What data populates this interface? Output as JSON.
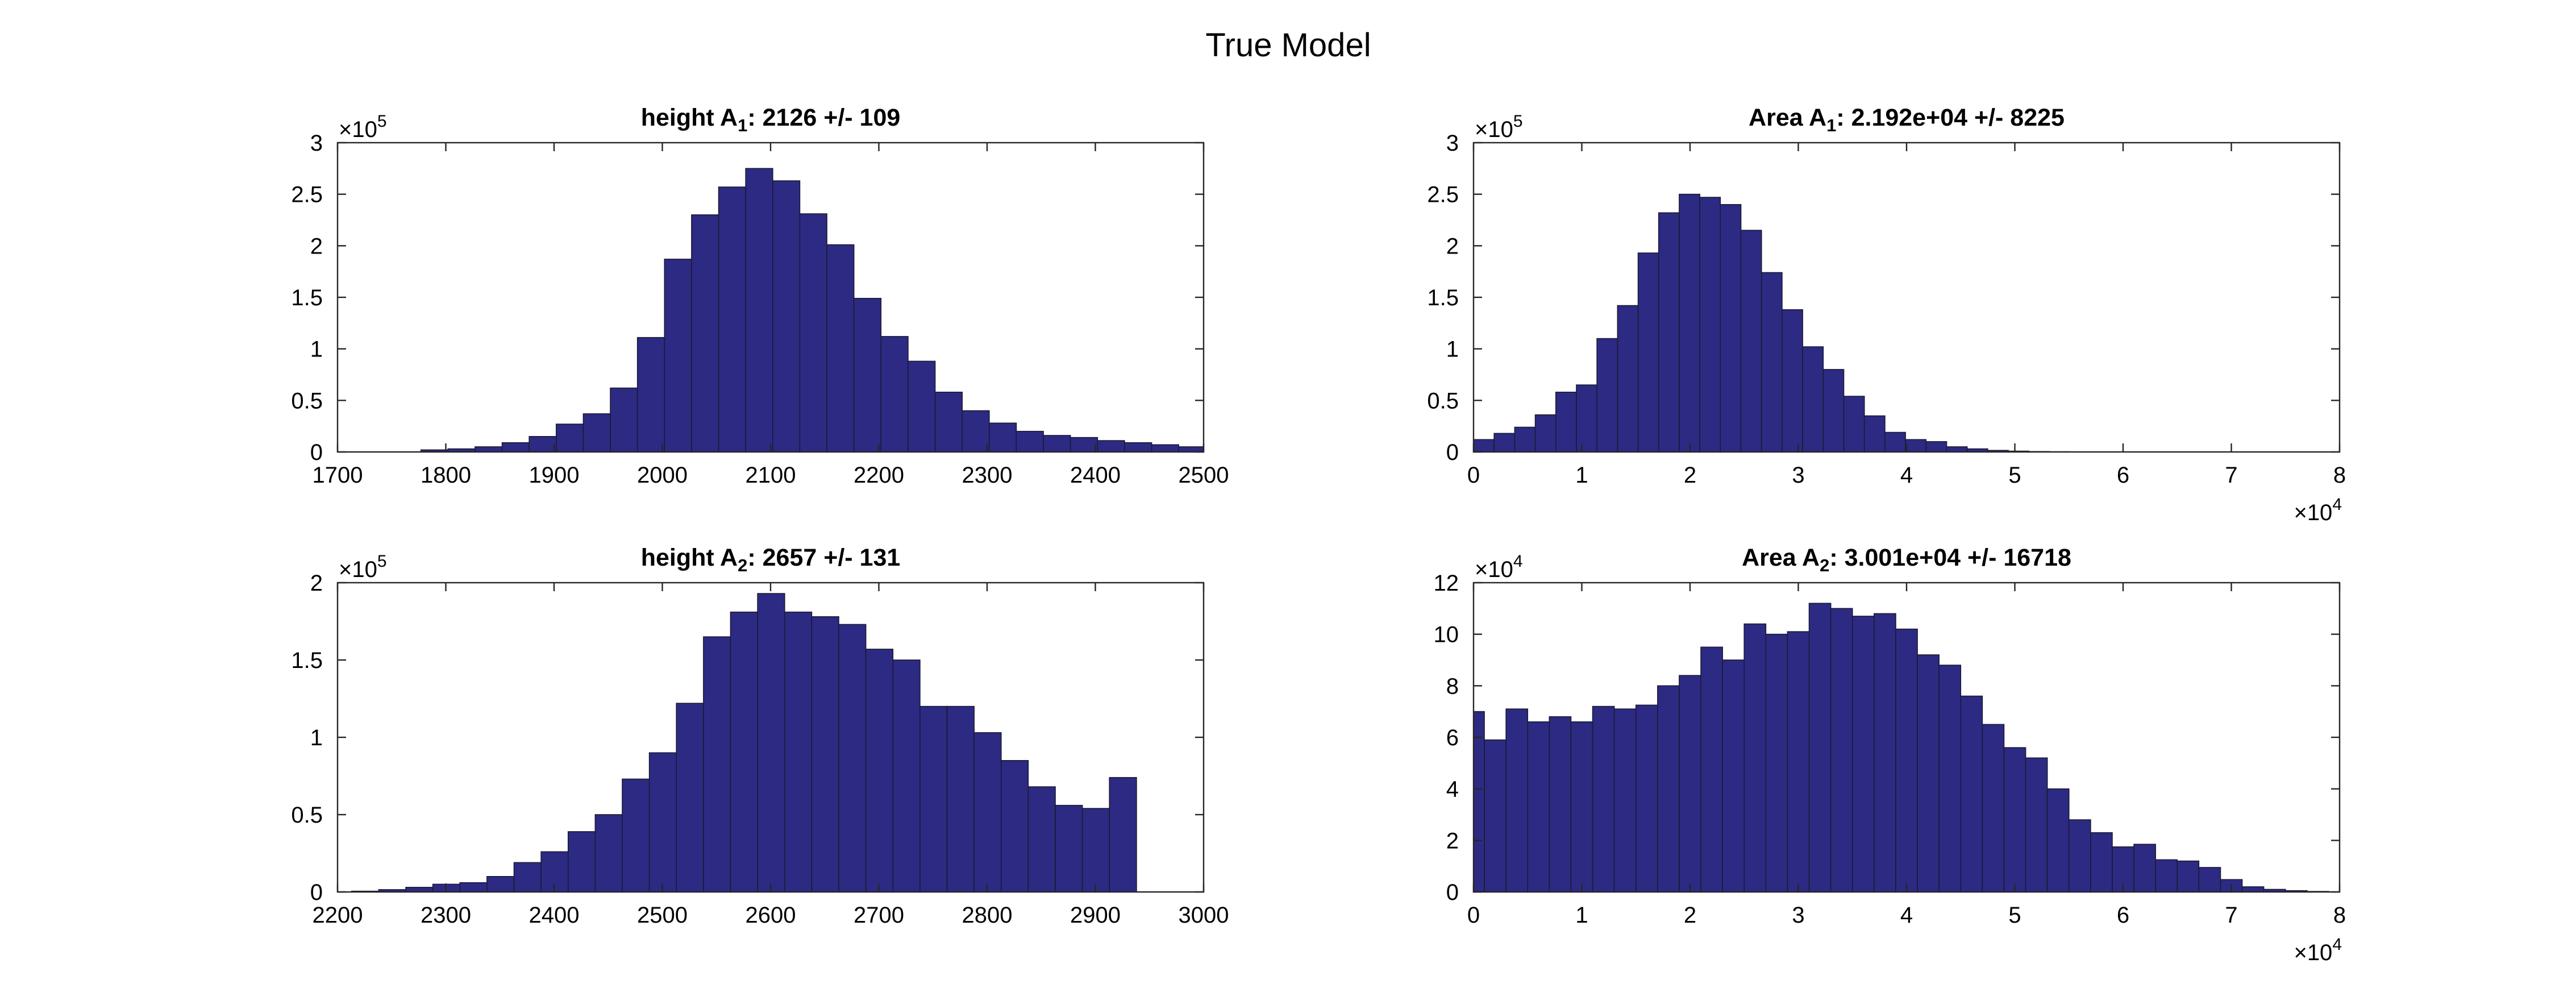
{
  "figure": {
    "title": "True Model",
    "bar_color": "#2d2a84",
    "bar_edge_color": "#1a1a33"
  },
  "chart_data": [
    {
      "type": "bar",
      "panel": "top-left",
      "title": {
        "prefix": "height A",
        "sub": "1",
        "suffix": ": 2126 +/- 109"
      },
      "xlim": [
        1700,
        2500
      ],
      "xticks": [
        1700,
        1800,
        1900,
        2000,
        2100,
        2200,
        2300,
        2400,
        2500
      ],
      "xtick_labels": [
        "1700",
        "1800",
        "1900",
        "2000",
        "2100",
        "2200",
        "2300",
        "2400",
        "2500"
      ],
      "ylim": [
        0,
        300000
      ],
      "yticks": [
        0,
        50000,
        100000,
        150000,
        200000,
        250000,
        300000
      ],
      "ytick_labels": [
        "0",
        "0.5",
        "1",
        "1.5",
        "2",
        "2.5",
        "3"
      ],
      "y_exponent": {
        "base": "×10",
        "power": "5"
      },
      "x_exponent": null,
      "bin_edges": [
        1777,
        1802,
        1827,
        1852,
        1877,
        1902,
        1927,
        1952,
        1977,
        2002,
        2027,
        2052,
        2077,
        2102,
        2127,
        2152,
        2177,
        2202,
        2227,
        2252,
        2277,
        2302,
        2327,
        2352,
        2377,
        2402,
        2427,
        2452,
        2477,
        2500
      ],
      "values": [
        2000,
        3000,
        5000,
        9000,
        15000,
        27000,
        37000,
        62000,
        111000,
        187000,
        230000,
        257000,
        275000,
        263000,
        231000,
        201000,
        149000,
        112000,
        88000,
        58000,
        40000,
        28000,
        20000,
        16000,
        14000,
        11000,
        9000,
        7000,
        5000
      ]
    },
    {
      "type": "bar",
      "panel": "top-right",
      "title": {
        "prefix": "Area A",
        "sub": "1",
        "suffix": ": 2.192e+04 +/- 8225"
      },
      "xlim": [
        0,
        80000
      ],
      "xticks": [
        0,
        10000,
        20000,
        30000,
        40000,
        50000,
        60000,
        70000,
        80000
      ],
      "xtick_labels": [
        "0",
        "1",
        "2",
        "3",
        "4",
        "5",
        "6",
        "7",
        "8"
      ],
      "ylim": [
        0,
        300000
      ],
      "yticks": [
        0,
        50000,
        100000,
        150000,
        200000,
        250000,
        300000
      ],
      "ytick_labels": [
        "0",
        "0.5",
        "1",
        "1.5",
        "2",
        "2.5",
        "3"
      ],
      "y_exponent": {
        "base": "×10",
        "power": "5"
      },
      "x_exponent": {
        "base": "×10",
        "power": "4"
      },
      "bin_edges": [
        0,
        1900,
        3800,
        5700,
        7600,
        9500,
        11400,
        13300,
        15200,
        17100,
        19000,
        20900,
        22800,
        24700,
        26600,
        28500,
        30400,
        32300,
        34200,
        36100,
        38000,
        39900,
        41800,
        43700,
        45600,
        47500,
        49400,
        51300,
        53200,
        55100,
        57000
      ],
      "values": [
        12000,
        18000,
        24000,
        36000,
        58000,
        65000,
        110000,
        142000,
        193000,
        232000,
        250000,
        247000,
        240000,
        215000,
        174000,
        138000,
        102000,
        80000,
        54000,
        35000,
        19000,
        12000,
        10000,
        5000,
        3000,
        1500,
        800,
        400,
        200,
        100
      ]
    },
    {
      "type": "bar",
      "panel": "bottom-left",
      "title": {
        "prefix": "height A",
        "sub": "2",
        "suffix": ": 2657 +/- 131"
      },
      "xlim": [
        2200,
        3000
      ],
      "xticks": [
        2200,
        2300,
        2400,
        2500,
        2600,
        2700,
        2800,
        2900,
        3000
      ],
      "xtick_labels": [
        "2200",
        "2300",
        "2400",
        "2500",
        "2600",
        "2700",
        "2800",
        "2900",
        "3000"
      ],
      "ylim": [
        0,
        200000
      ],
      "yticks": [
        0,
        50000,
        100000,
        150000,
        200000
      ],
      "ytick_labels": [
        "0",
        "0.5",
        "1",
        "1.5",
        "2"
      ],
      "y_exponent": {
        "base": "×10",
        "power": "5"
      },
      "x_exponent": null,
      "bin_edges": [
        2213,
        2238,
        2263,
        2288,
        2313,
        2338,
        2363,
        2388,
        2413,
        2438,
        2463,
        2488,
        2513,
        2538,
        2563,
        2588,
        2613,
        2638,
        2663,
        2688,
        2713,
        2738,
        2763,
        2788,
        2813,
        2838,
        2863,
        2888,
        2913,
        2938
      ],
      "values": [
        500,
        1500,
        3000,
        5000,
        6000,
        10000,
        19000,
        26000,
        39000,
        50000,
        73000,
        90000,
        122000,
        165000,
        181000,
        193000,
        181000,
        178000,
        173000,
        157000,
        150000,
        120000,
        120000,
        103000,
        85000,
        68000,
        56000,
        54000,
        74000
      ]
    },
    {
      "type": "bar",
      "panel": "bottom-right",
      "title": {
        "prefix": "Area A",
        "sub": "2",
        "suffix": ": 3.001e+04 +/- 16718"
      },
      "xlim": [
        0,
        80000
      ],
      "xticks": [
        0,
        10000,
        20000,
        30000,
        40000,
        50000,
        60000,
        70000,
        80000
      ],
      "xtick_labels": [
        "0",
        "1",
        "2",
        "3",
        "4",
        "5",
        "6",
        "7",
        "8"
      ],
      "ylim": [
        0,
        120000
      ],
      "yticks": [
        0,
        20000,
        40000,
        60000,
        80000,
        100000,
        120000
      ],
      "ytick_labels": [
        "0",
        "2",
        "4",
        "6",
        "8",
        "10",
        "12"
      ],
      "y_exponent": {
        "base": "×10",
        "power": "4"
      },
      "x_exponent": {
        "base": "×10",
        "power": "4"
      },
      "bin_edges": [
        0,
        1000,
        3000,
        5000,
        7000,
        9000,
        11000,
        13000,
        15000,
        17000,
        19000,
        21000,
        23000,
        25000,
        27000,
        29000,
        31000,
        33000,
        35000,
        37000,
        39000,
        41000,
        43000,
        45000,
        47000,
        49000,
        51000,
        53000,
        55000,
        57000,
        59000,
        61000,
        63000,
        65000,
        67000,
        69000,
        71000,
        73000,
        75000,
        77000,
        79000
      ],
      "values": [
        70000,
        59000,
        71000,
        66000,
        68000,
        66000,
        72000,
        71000,
        72500,
        80000,
        84000,
        95000,
        90000,
        104000,
        100000,
        101000,
        112000,
        110000,
        107000,
        108000,
        102000,
        92000,
        88000,
        76000,
        65000,
        56000,
        52000,
        40000,
        28000,
        23000,
        17500,
        18500,
        12500,
        12000,
        9500,
        4800,
        2000,
        1000,
        500,
        200
      ]
    }
  ]
}
